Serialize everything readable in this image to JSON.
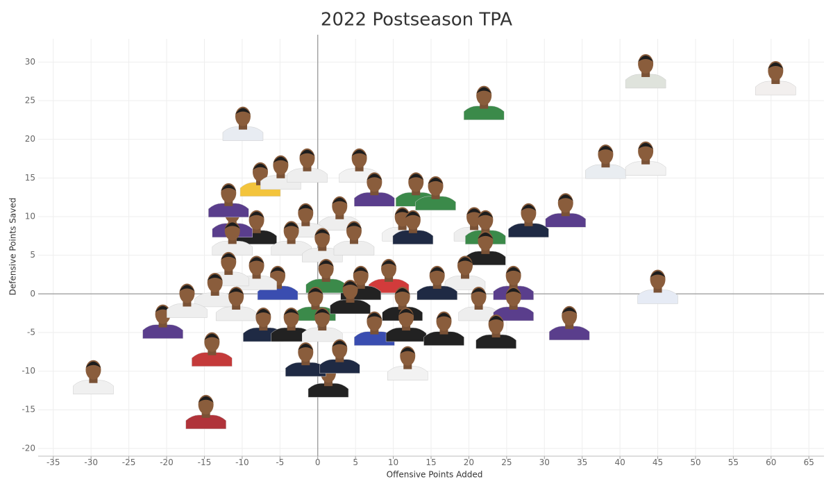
{
  "chart_data": {
    "type": "scatter",
    "title": "2022 Postseason TPA",
    "x_label": "Offensive Points Added",
    "y_label": "Defensive Points Saved",
    "xlim": [
      -37,
      67
    ],
    "ylim": [
      -21,
      33
    ],
    "xticks": [
      -35,
      -30,
      -25,
      -20,
      -15,
      -10,
      -5,
      0,
      5,
      10,
      15,
      20,
      25,
      30,
      35,
      40,
      45,
      50,
      55,
      60,
      65
    ],
    "yticks": [
      -20,
      -15,
      -10,
      -5,
      0,
      5,
      10,
      15,
      20,
      25,
      30
    ],
    "grid": true,
    "series": [
      {
        "x": [
          43.4,
          60.6,
          22,
          -9.9,
          38.1,
          43.4,
          45,
          32.8,
          27.9,
          33.3,
          -29.7,
          -14.8,
          -14,
          -20.5,
          1.4,
          11.9,
          -7.6,
          -4.9,
          -1.4,
          5.5,
          7.5,
          13,
          15.6,
          2.9,
          -1.6,
          -8.1,
          -11.3,
          -11.8,
          11.2,
          20.7,
          22.2,
          12.6,
          -3.5,
          0.6,
          4.8,
          -11.3,
          22.2,
          19.5,
          25.9,
          15.8,
          9.4,
          5.7,
          1.1,
          -5.3,
          -8.1,
          -11.8,
          -13.6,
          -17.3,
          -10.8,
          -0.3,
          4.3,
          11.2,
          21.3,
          25.9,
          -7.2,
          -3.5,
          0.6,
          7.5,
          11.7,
          16.7,
          23.6,
          -1.6,
          2.9
        ],
        "y": [
          28.6,
          27.7,
          24.5,
          21.8,
          16.9,
          17.3,
          0.7,
          10.6,
          9.3,
          -4,
          -11,
          -15.5,
          -7.4,
          -3.8,
          -11.4,
          -9.2,
          14.6,
          15.5,
          16.4,
          16.4,
          13.3,
          13.3,
          12.8,
          10.2,
          9.3,
          8.4,
          9.3,
          11.9,
          8.8,
          8.8,
          8.4,
          8.4,
          7,
          6.1,
          7,
          7,
          5.7,
          2.5,
          1.2,
          1.2,
          2.1,
          1.2,
          2.1,
          1.2,
          2.5,
          3,
          0.3,
          -1.1,
          -1.5,
          -1.5,
          -0.6,
          -1.5,
          -1.5,
          -1.5,
          -4.2,
          -4.2,
          -4.2,
          -4.7,
          -4.2,
          -4.7,
          -5.1,
          -8.7,
          -8.3
        ],
        "colors": [
          "#dfe3dc",
          "#f2efee",
          "#3b8a4a",
          "#e8ecf2",
          "#e9edf1",
          "#f2f2f2",
          "#e6ebf5",
          "#5a3e8c",
          "#1f2a44",
          "#5a3e8c",
          "#f0f0f0",
          "#b0333a",
          "#c43a3a",
          "#5a3e8c",
          "#222222",
          "#f2f2f2",
          "#f3c43c",
          "#eeeeee",
          "#eeeeee",
          "#f2f2f2",
          "#5a3e8c",
          "#3b8a4a",
          "#3b8a4a",
          "#eeeeee",
          "#eeeeee",
          "#222222",
          "#5a3e8c",
          "#5a3e8c",
          "#f2f2f2",
          "#eeeeee",
          "#3b8a4a",
          "#1f2a44",
          "#eeeeee",
          "#eeeeee",
          "#eeeeee",
          "#eeeeee",
          "#222222",
          "#eeeeee",
          "#5a3e8c",
          "#1f2a44",
          "#d23b3b",
          "#222222",
          "#3b8a4a",
          "#3a4db0",
          "#eeeeee",
          "#eeeeee",
          "#eeeeee",
          "#eeeeee",
          "#eeeeee",
          "#3b8a4a",
          "#222222",
          "#222222",
          "#eeeeee",
          "#5a3e8c",
          "#1f2a44",
          "#222222",
          "#eeeeee",
          "#3a4db0",
          "#222222",
          "#222222",
          "#222222",
          "#1f2a44",
          "#1f2a44"
        ]
      }
    ]
  }
}
